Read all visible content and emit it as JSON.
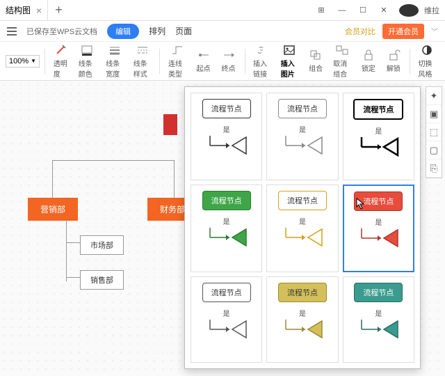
{
  "titlebar": {
    "tab_title": "结构图",
    "username": "维拉"
  },
  "menubar": {
    "save_status": "已保存至WPS云文档",
    "edit": "编辑",
    "arrange": "排列",
    "page": "页面",
    "vip_compare": "会员对比",
    "vip_open": "开通会员"
  },
  "toolbar": {
    "zoom": "100%",
    "opacity": "透明度",
    "line_color": "线条颜色",
    "line_width": "线条宽度",
    "line_style": "线条样式",
    "conn_type": "连线类型",
    "start": "起点",
    "end": "终点",
    "insert_link": "插入链接",
    "insert_image": "插入图片",
    "group": "组合",
    "ungroup": "取消组合",
    "lock": "锁定",
    "unlock": "解锁",
    "switch_style": "切换风格"
  },
  "canvas": {
    "marketing": "营销部",
    "finance": "财务部",
    "market": "市场部",
    "sales": "销售部"
  },
  "stylepanel": {
    "node_label": "流程节点",
    "yes_label": "是",
    "cells": [
      {
        "bg": "#ffffff",
        "border": "#333333",
        "txt": "#333333",
        "bold": false
      },
      {
        "bg": "#ffffff",
        "border": "#888888",
        "txt": "#333333",
        "bold": false
      },
      {
        "bg": "#ffffff",
        "border": "#000000",
        "txt": "#000000",
        "bold": true
      },
      {
        "bg": "#3fa648",
        "border": "#2a7a30",
        "txt": "#ffffff",
        "bold": false
      },
      {
        "bg": "#ffffff",
        "border": "#d4a017",
        "txt": "#333333",
        "bold": false
      },
      {
        "bg": "#e74c3c",
        "border": "#b03428",
        "txt": "#ffffff",
        "bold": false
      },
      {
        "bg": "#ffffff",
        "border": "#555555",
        "txt": "#333333",
        "bold": false
      },
      {
        "bg": "#d4c05a",
        "border": "#9a8a30",
        "txt": "#333333",
        "bold": false
      },
      {
        "bg": "#3a9b8f",
        "border": "#2a6b62",
        "txt": "#ffffff",
        "bold": false
      }
    ],
    "selected": 5
  }
}
